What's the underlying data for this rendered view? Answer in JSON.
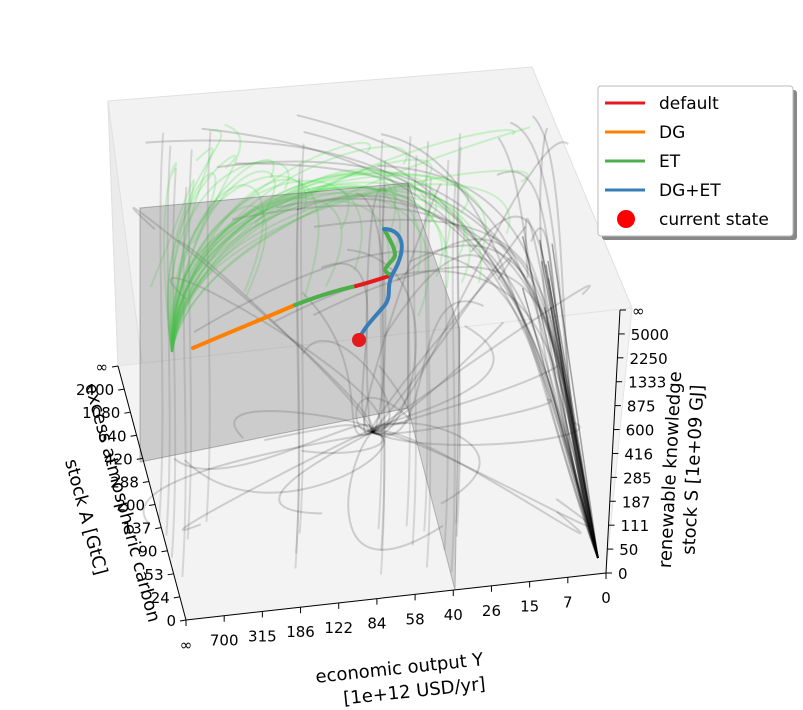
{
  "chart_data": {
    "type": "line",
    "projection": "3d",
    "axes": {
      "x": {
        "label_line1": "economic output Y",
        "label_line2": "[1e+12 USD/yr]",
        "ticks": [
          "∞",
          "700",
          "315",
          "186",
          "122",
          "84",
          "58",
          "40",
          "26",
          "15",
          "7",
          "0"
        ]
      },
      "y": {
        "label_line1": "excess atmospheric carbon",
        "label_line2": "stock A [GtC]",
        "ticks": [
          "0",
          "24",
          "53",
          "90",
          "137",
          "200",
          "288",
          "420",
          "640",
          "1080",
          "2400",
          "∞"
        ]
      },
      "z": {
        "label_line1": "renewable knowledge",
        "label_line2": "stock S [1e+09 GJ]",
        "ticks": [
          "0",
          "50",
          "111",
          "187",
          "285",
          "416",
          "600",
          "875",
          "1333",
          "2250",
          "5000",
          "∞"
        ]
      }
    },
    "legend": {
      "placement": "top-right",
      "entries": [
        {
          "label": "default",
          "color": "#e41a1c",
          "marker": "line"
        },
        {
          "label": "DG",
          "color": "#ff7f00",
          "marker": "line"
        },
        {
          "label": "ET",
          "color": "#4daf4a",
          "marker": "line"
        },
        {
          "label": "DG+ET",
          "color": "#377eb8",
          "marker": "line"
        },
        {
          "label": "current state",
          "color": "#ff0000",
          "marker": "dot"
        }
      ]
    },
    "background_trajectories": [
      {
        "name": "default-flow",
        "color": "#000000"
      },
      {
        "name": "et-flow",
        "color": "#33dd33"
      }
    ],
    "series": [
      {
        "name": "default",
        "color": "#e41a1c"
      },
      {
        "name": "DG",
        "color": "#ff7f00"
      },
      {
        "name": "ET",
        "color": "#4daf4a"
      },
      {
        "name": "DG+ET",
        "color": "#377eb8"
      }
    ],
    "current_state": {
      "label": "current state",
      "color": "#e41a1c"
    },
    "grid": false
  }
}
